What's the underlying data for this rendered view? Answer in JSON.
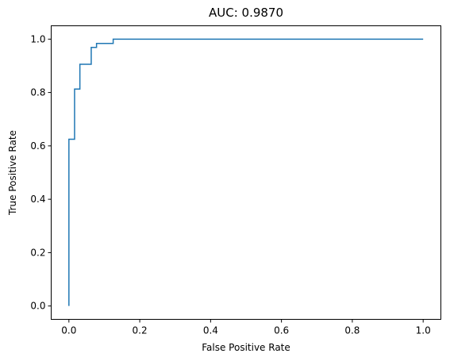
{
  "chart_data": {
    "type": "line",
    "title": "AUC: 0.9870",
    "xlabel": "False Positive Rate",
    "ylabel": "True Positive Rate",
    "xlim": [
      -0.05,
      1.05
    ],
    "ylim": [
      -0.05,
      1.05
    ],
    "xticks": [
      0.0,
      0.2,
      0.4,
      0.6,
      0.8,
      1.0
    ],
    "xtick_labels": [
      "0.0",
      "0.2",
      "0.4",
      "0.6",
      "0.8",
      "1.0"
    ],
    "yticks": [
      0.0,
      0.2,
      0.4,
      0.6,
      0.8,
      1.0
    ],
    "ytick_labels": [
      "0.0",
      "0.2",
      "0.4",
      "0.6",
      "0.8",
      "1.0"
    ],
    "grid": false,
    "legend": "none",
    "series": [
      {
        "color": "#1f77b4",
        "step": true,
        "x": [
          0.0,
          0.0,
          0.016,
          0.016,
          0.031,
          0.031,
          0.063,
          0.063,
          0.078,
          0.078,
          0.125,
          0.125,
          1.0
        ],
        "y": [
          0.0,
          0.625,
          0.625,
          0.813,
          0.813,
          0.906,
          0.906,
          0.969,
          0.969,
          0.984,
          0.984,
          1.0,
          1.0
        ]
      }
    ]
  }
}
